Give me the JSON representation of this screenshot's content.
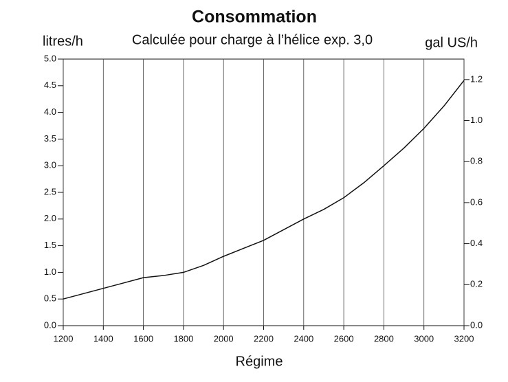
{
  "chart_data": {
    "type": "line",
    "title": "Consommation",
    "subtitle": "Calculée pour charge à l’hélice exp. 3,0",
    "ylabel": "litres/h",
    "y2label": "gal US/h",
    "xlabel": "Régime",
    "x": [
      1200,
      1300,
      1400,
      1500,
      1600,
      1700,
      1800,
      1900,
      2000,
      2100,
      2200,
      2300,
      2400,
      2500,
      2600,
      2700,
      2800,
      2900,
      3000,
      3100,
      3200
    ],
    "values": [
      0.5,
      0.6,
      0.7,
      0.8,
      0.9,
      0.94,
      1.0,
      1.13,
      1.3,
      1.45,
      1.6,
      1.8,
      2.0,
      2.18,
      2.4,
      2.68,
      3.0,
      3.33,
      3.7,
      4.12,
      4.6
    ],
    "color": "#111111",
    "xlim": [
      1200,
      3200
    ],
    "xticks": [
      1200,
      1400,
      1600,
      1800,
      2000,
      2200,
      2400,
      2600,
      2800,
      3000,
      3200
    ],
    "ylim": [
      0,
      5
    ],
    "yticks": [
      {
        "value": 0,
        "label": "0.0"
      },
      {
        "value": 0.5,
        "label": "0.5"
      },
      {
        "value": 1,
        "label": "1.0"
      },
      {
        "value": 1.5,
        "label": "1.5"
      },
      {
        "value": 2,
        "label": "2.0"
      },
      {
        "value": 2.5,
        "label": "2.5"
      },
      {
        "value": 3,
        "label": "3.0"
      },
      {
        "value": 3.5,
        "label": "3.5"
      },
      {
        "value": 4,
        "label": "4.0"
      },
      {
        "value": 4.5,
        "label": "4.5"
      },
      {
        "value": 5,
        "label": "5.0"
      }
    ],
    "y2lim": [
      0,
      1.3
    ],
    "y2ticks": [
      {
        "value": 0,
        "label": "0.0"
      },
      0.2,
      0.4,
      0.6,
      0.8,
      {
        "value": 1,
        "label": "1.0"
      },
      1.2
    ],
    "grid": "x"
  }
}
